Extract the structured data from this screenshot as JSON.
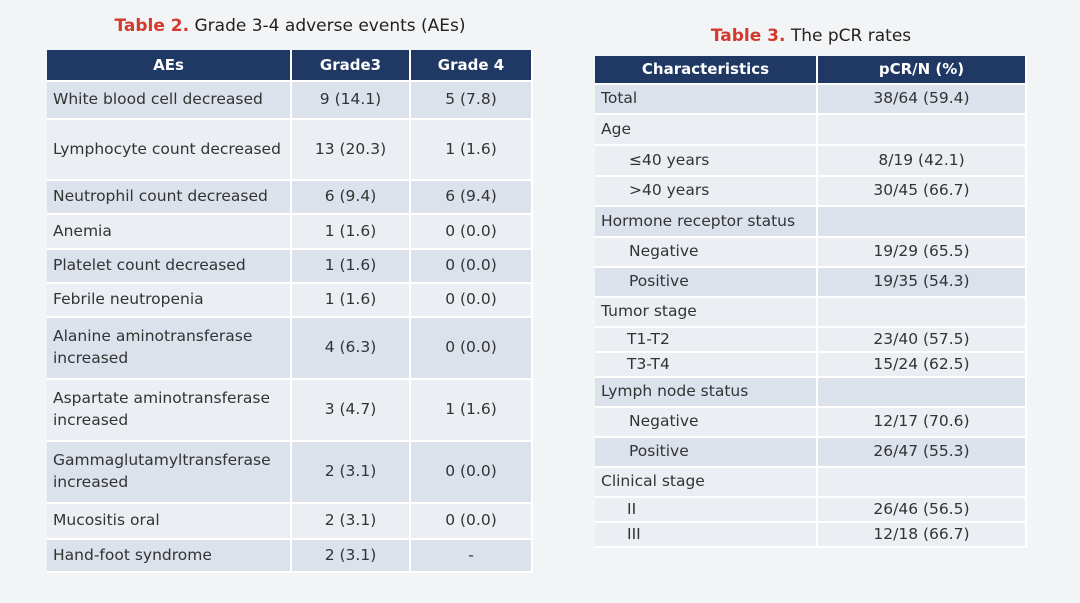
{
  "table2": {
    "title_label": "Table 2.",
    "title_text": "Grade 3-4 adverse events (AEs)",
    "header": [
      "AEs",
      "Grade3",
      "Grade 4"
    ],
    "rows": [
      [
        "White blood cell decreased",
        "9 (14.1)",
        "5 (7.8)"
      ],
      [
        "Lymphocyte count decreased",
        "13 (20.3)",
        "1 (1.6)"
      ],
      [
        "Neutrophil count decreased",
        "6 (9.4)",
        "6 (9.4)"
      ],
      [
        "Anemia",
        "1 (1.6)",
        "0 (0.0)"
      ],
      [
        "Platelet count decreased",
        "1 (1.6)",
        "0 (0.0)"
      ],
      [
        "Febrile neutropenia",
        "1 (1.6)",
        "0 (0.0)"
      ],
      [
        "Alanine aminotransferase increased",
        "4 (6.3)",
        "0 (0.0)"
      ],
      [
        "Aspartate aminotransferase increased",
        "3 (4.7)",
        "1 (1.6)"
      ],
      [
        "Gammaglutamyltransferase increased",
        "2 (3.1)",
        "0 (0.0)"
      ],
      [
        "Mucositis oral",
        "2 (3.1)",
        "0 (0.0)"
      ],
      [
        "Hand-foot syndrome",
        "2 (3.1)",
        "-"
      ]
    ]
  },
  "table3": {
    "title_label": "Table 3.",
    "title_text": "The pCR rates",
    "header": [
      "Characteristics",
      "pCR/N (%)"
    ],
    "rows": [
      [
        "Total",
        "38/64 (59.4)"
      ],
      [
        "Age",
        ""
      ],
      [
        "≤40 years",
        "8/19 (42.1)"
      ],
      [
        ">40 years",
        "30/45 (66.7)"
      ],
      [
        "Hormone receptor status",
        ""
      ],
      [
        "Negative",
        "19/29 (65.5)"
      ],
      [
        "Positive",
        "19/35 (54.3)"
      ],
      [
        "Tumor stage",
        ""
      ],
      [
        "T1-T2",
        "23/40 (57.5)"
      ],
      [
        "T3-T4",
        "15/24 (62.5)"
      ],
      [
        "Lymph node status",
        ""
      ],
      [
        "Negative",
        "12/17 (70.6)"
      ],
      [
        "Positive",
        "26/47 (55.3)"
      ],
      [
        "Clinical stage",
        ""
      ],
      [
        "II",
        "26/46 (56.5)"
      ],
      [
        "III",
        "12/18 (66.7)"
      ]
    ]
  }
}
